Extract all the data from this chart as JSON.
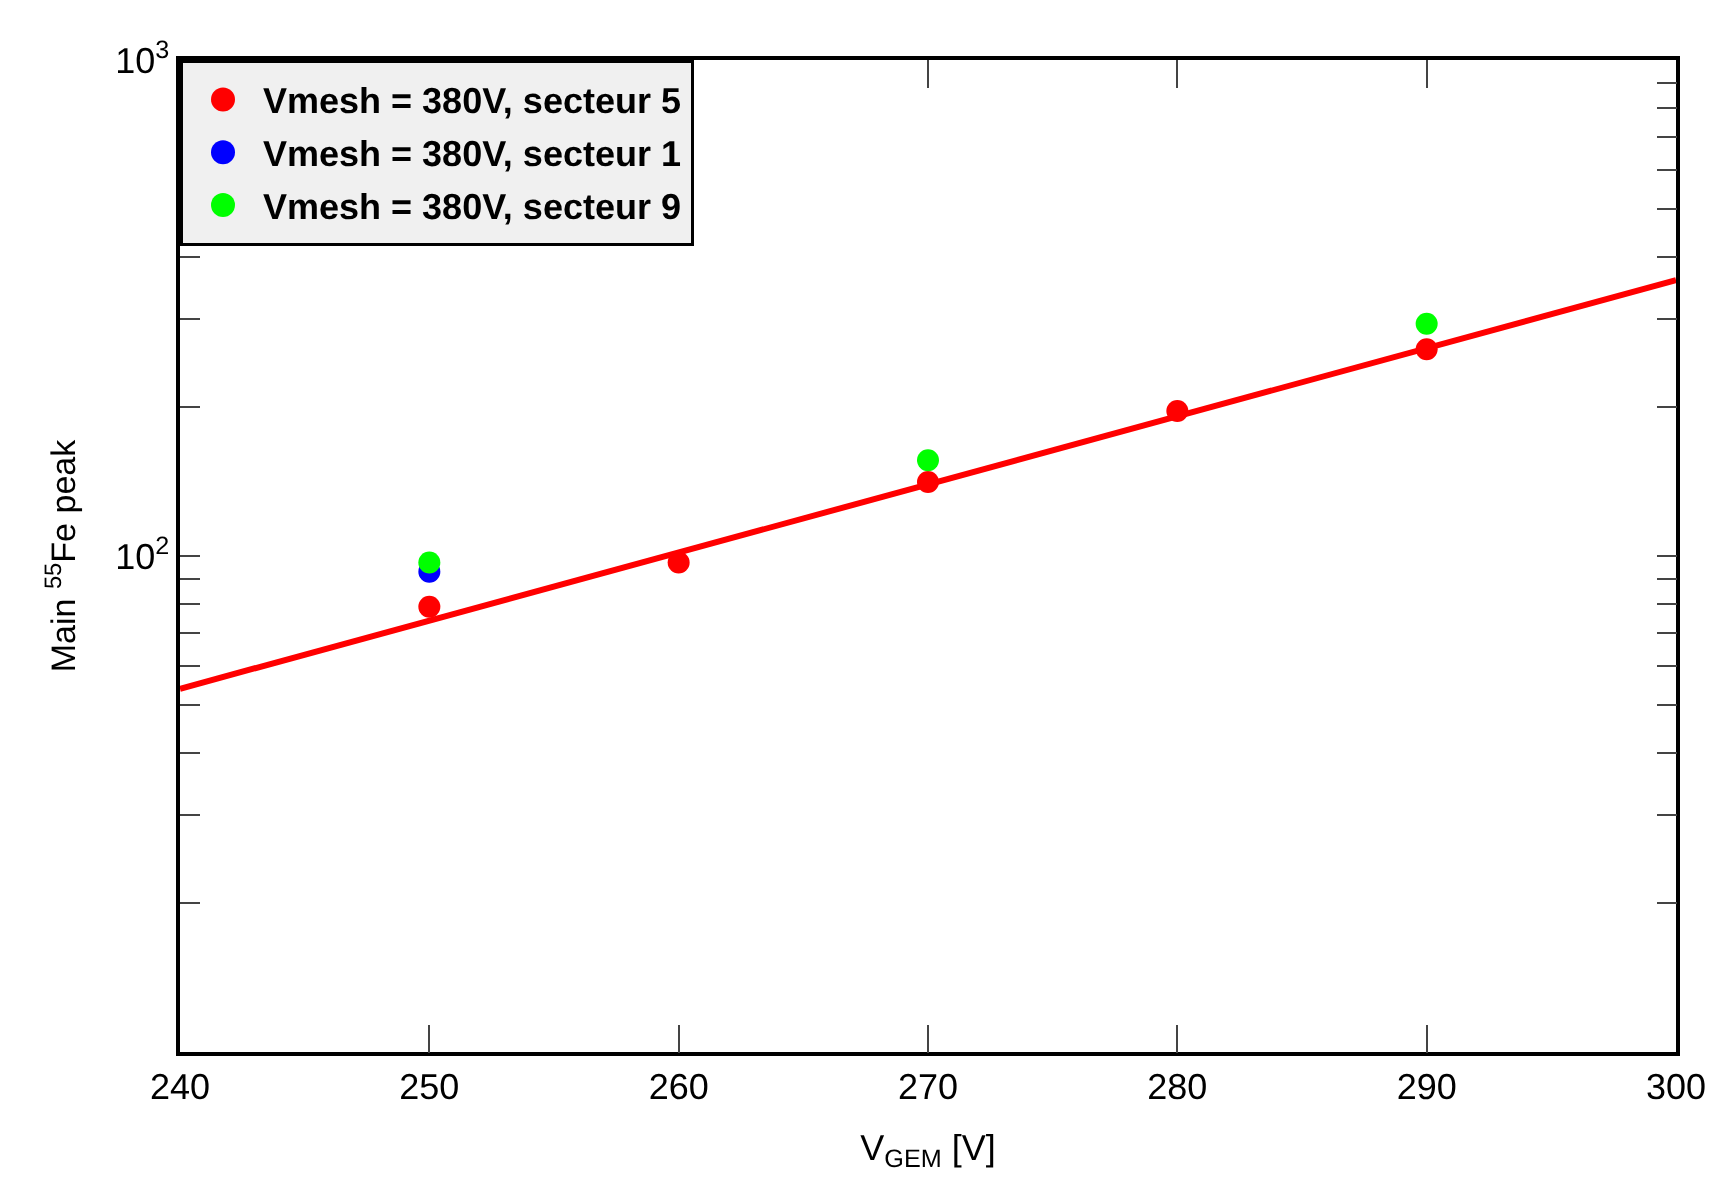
{
  "chart_data": {
    "type": "scatter",
    "xlabel": "V$_{GEM}$ [V]",
    "ylabel": "Main $^{55}$Fe peak",
    "series": [
      {
        "name": "Vmesh = 380V, secteur 5",
        "color": "#ff0000",
        "x": [
          250,
          260,
          270,
          280,
          290
        ],
        "values": [
          79,
          97,
          141,
          196,
          261
        ]
      },
      {
        "name": "Vmesh = 380V, secteur 1",
        "color": "#0000ff",
        "x": [
          250
        ],
        "values": [
          93
        ]
      },
      {
        "name": "Vmesh = 380V, secteur 9",
        "color": "#00ff00",
        "x": [
          250,
          270,
          290
        ],
        "values": [
          97,
          156,
          294
        ]
      },
      {
        "type": "line",
        "marker": "none",
        "color": "#ff0000",
        "x": [
          240,
          300
        ],
        "values": [
          54,
          360
        ]
      }
    ],
    "log": "y",
    "xlim": [
      240,
      300
    ],
    "ylim": [
      10,
      1000
    ],
    "xticks": [
      240,
      250,
      260,
      270,
      280,
      290,
      300
    ],
    "yticks": [
      {
        "value": 20,
        "label": null
      },
      {
        "value": 30,
        "label": null
      },
      {
        "value": 40,
        "label": null
      },
      {
        "value": 50,
        "label": null
      },
      {
        "value": 60,
        "label": null
      },
      {
        "value": 70,
        "label": null
      },
      {
        "value": 80,
        "label": null
      },
      {
        "value": 90,
        "label": null
      },
      {
        "value": 100,
        "label": "10$^{2}$"
      },
      {
        "value": 200,
        "label": null
      },
      {
        "value": 300,
        "label": null
      },
      {
        "value": 400,
        "label": null
      },
      {
        "value": 500,
        "label": null
      },
      {
        "value": 600,
        "label": null
      },
      {
        "value": 700,
        "label": null
      },
      {
        "value": 800,
        "label": null
      },
      {
        "value": 900,
        "label": null
      },
      {
        "value": 1000,
        "label": "10$^{3}$"
      }
    ],
    "legend": "top left",
    "marker": "circle"
  }
}
